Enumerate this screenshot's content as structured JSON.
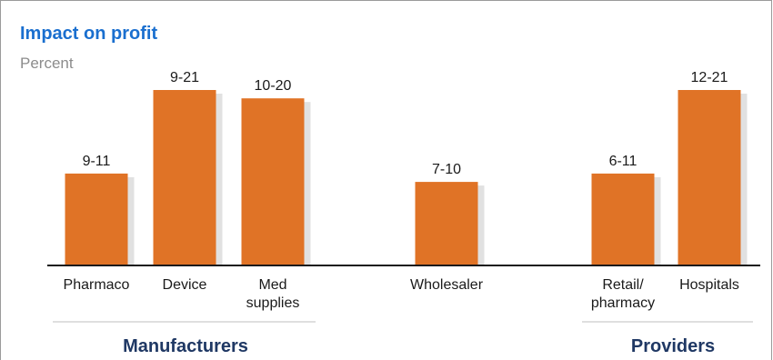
{
  "colors": {
    "bar": "#e07326",
    "bar_shadow": "#c9c9c9",
    "title": "#1a6fcf",
    "subtitle": "#8c8c8c",
    "group_label": "#1f3864",
    "axis": "#1a1a1a",
    "divider": "#bfbfbf"
  },
  "chart_data": {
    "type": "bar",
    "title": "Impact on profit",
    "subtitle": "Percent",
    "xlabel": "",
    "ylabel": "",
    "ylim": [
      0,
      21
    ],
    "categories": [
      "Pharmaco",
      "Device",
      "Med supplies",
      "Wholesaler",
      "Retail/ pharmacy",
      "Hospitals"
    ],
    "category_lines": [
      [
        "Pharmaco"
      ],
      [
        "Device"
      ],
      [
        "Med",
        "supplies"
      ],
      [
        "Wholesaler"
      ],
      [
        "Retail/",
        "pharmacy"
      ],
      [
        "Hospitals"
      ]
    ],
    "data_labels": [
      "9-11",
      "9-21",
      "10-20",
      "7-10",
      "6-11",
      "12-21"
    ],
    "ranges": [
      [
        9,
        11
      ],
      [
        9,
        21
      ],
      [
        10,
        20
      ],
      [
        7,
        10
      ],
      [
        6,
        11
      ],
      [
        12,
        21
      ]
    ],
    "values": [
      11,
      21,
      20,
      10,
      11,
      21
    ],
    "groups": [
      {
        "label": "Manufacturers",
        "categories": [
          "Pharmaco",
          "Device",
          "Med supplies"
        ]
      },
      {
        "label": "Providers",
        "categories": [
          "Retail/ pharmacy",
          "Hospitals"
        ]
      }
    ],
    "grid": false,
    "legend": "none"
  }
}
